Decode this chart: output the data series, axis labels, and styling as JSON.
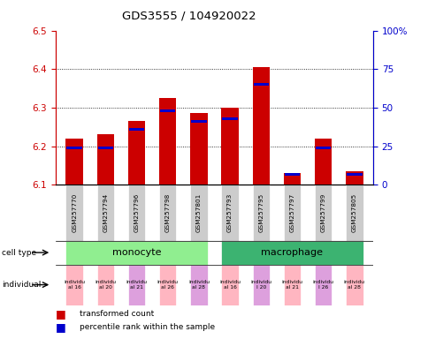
{
  "title": "GDS3555 / 104920022",
  "samples": [
    "GSM257770",
    "GSM257794",
    "GSM257796",
    "GSM257798",
    "GSM257801",
    "GSM257793",
    "GSM257795",
    "GSM257797",
    "GSM257799",
    "GSM257805"
  ],
  "red_values": [
    6.22,
    6.23,
    6.265,
    6.325,
    6.285,
    6.3,
    6.405,
    6.13,
    6.22,
    6.135
  ],
  "blue_values_pct": [
    24,
    24,
    36,
    48,
    41,
    43,
    65,
    7,
    24,
    7
  ],
  "ymin": 6.1,
  "ymax": 6.5,
  "y_ticks_red": [
    6.1,
    6.2,
    6.3,
    6.4,
    6.5
  ],
  "y_ticks_blue_pct": [
    0,
    25,
    50,
    75,
    100
  ],
  "cell_types": [
    {
      "label": "monocyte",
      "start": 0,
      "end": 4,
      "color": "#90EE90"
    },
    {
      "label": "macrophage",
      "start": 5,
      "end": 9,
      "color": "#3CB371"
    }
  ],
  "ind_labels": [
    "individu\nal 16",
    "individu\nal 20",
    "individu\nal 21",
    "individu\nal 26",
    "individu\nal 28",
    "individu\nal 16",
    "individu\nl 20",
    "individu\nal 21",
    "individu\nl 26",
    "individu\nal 28"
  ],
  "ind_colors": [
    "#FFB6C1",
    "#FFB6C1",
    "#DDA0DD",
    "#FFB6C1",
    "#DDA0DD",
    "#FFB6C1",
    "#DDA0DD",
    "#FFB6C1",
    "#DDA0DD",
    "#FFB6C1"
  ],
  "bar_width": 0.55,
  "red_color": "#CC0000",
  "blue_color": "#0000CC"
}
